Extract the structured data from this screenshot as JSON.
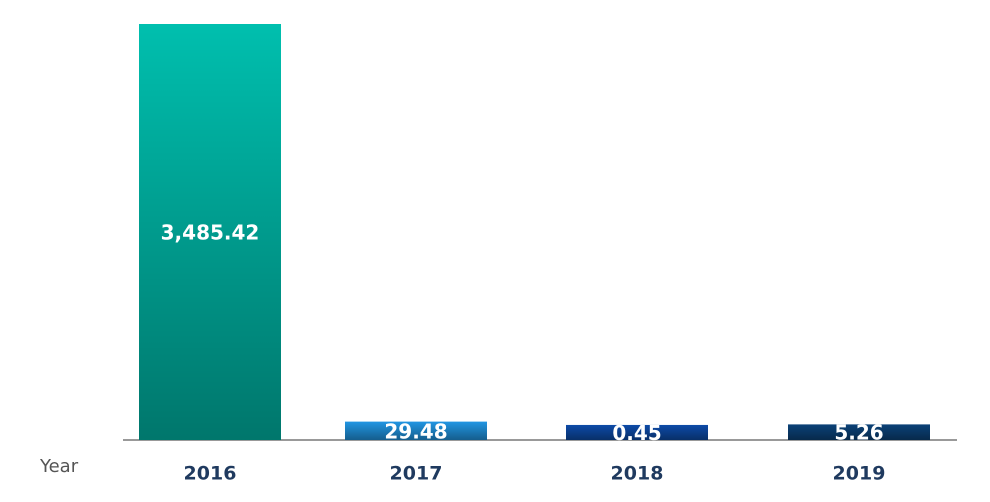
{
  "chart_data": {
    "type": "bar",
    "x_label": "Year",
    "categories": [
      "2016",
      "2017",
      "2018",
      "2019"
    ],
    "values": [
      3485.42,
      29.48,
      0.45,
      5.26
    ],
    "value_labels": [
      "3,485.42",
      "29.48",
      "0.45",
      "5.26"
    ],
    "colors": [
      "#00bfae",
      "#2196e3",
      "#0d4ba8",
      "#0b4278"
    ]
  }
}
